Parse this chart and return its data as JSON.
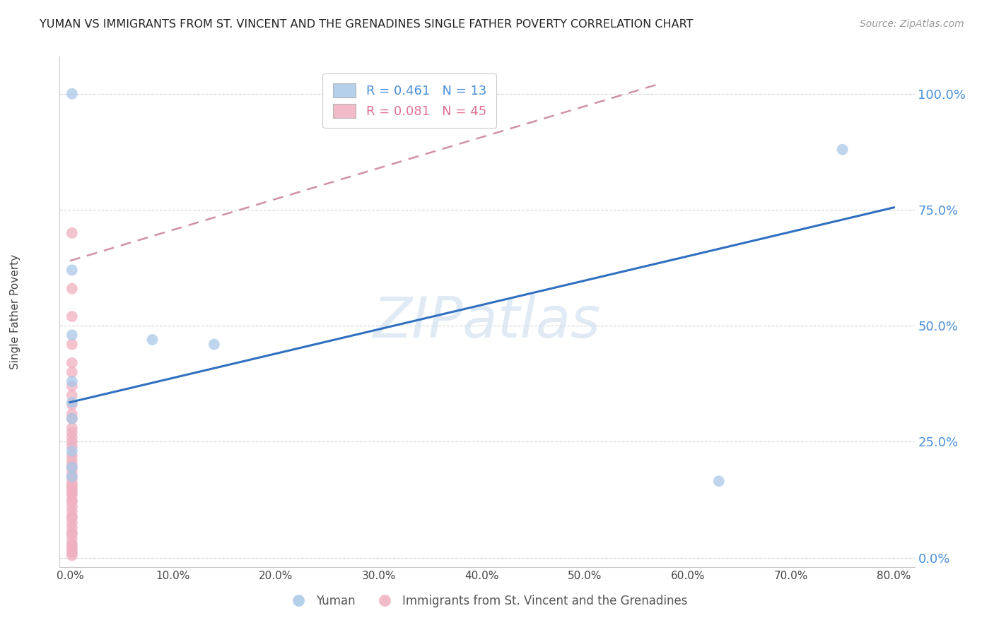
{
  "title": "YUMAN VS IMMIGRANTS FROM ST. VINCENT AND THE GRENADINES SINGLE FATHER POVERTY CORRELATION CHART",
  "source": "Source: ZipAtlas.com",
  "ylabel_label": "Single Father Poverty",
  "legend_blue_r": "R = 0.461",
  "legend_blue_n": "N = 13",
  "legend_pink_r": "R = 0.081",
  "legend_pink_n": "N = 45",
  "legend_blue_label": "Yuman",
  "legend_pink_label": "Immigrants from St. Vincent and the Grenadines",
  "watermark": "ZIPatlas",
  "blue_color": "#a8c8e8",
  "pink_color": "#f0b0c0",
  "trendline_blue_color": "#3070c0",
  "trendline_pink_color": "#d090a8",
  "yuman_x": [
    0.002,
    0.002,
    0.002,
    0.002,
    0.002,
    0.002,
    0.002,
    0.002,
    0.002,
    0.08,
    0.14,
    0.63,
    0.75
  ],
  "yuman_y": [
    1.0,
    0.62,
    0.48,
    0.38,
    0.335,
    0.3,
    0.23,
    0.195,
    0.175,
    0.47,
    0.46,
    0.165,
    0.88
  ],
  "immigrants_x": [
    0.002,
    0.002,
    0.002,
    0.002,
    0.002,
    0.002,
    0.002,
    0.002,
    0.002,
    0.002,
    0.002,
    0.002,
    0.002,
    0.002,
    0.002,
    0.002,
    0.002,
    0.002,
    0.002,
    0.002,
    0.002,
    0.002,
    0.002,
    0.002,
    0.002,
    0.002,
    0.002,
    0.002,
    0.002,
    0.002,
    0.002,
    0.002,
    0.002,
    0.002,
    0.002,
    0.002,
    0.002,
    0.002,
    0.002,
    0.002,
    0.002,
    0.002,
    0.002,
    0.002,
    0.002
  ],
  "immigrants_y": [
    0.7,
    0.58,
    0.52,
    0.46,
    0.42,
    0.4,
    0.37,
    0.35,
    0.33,
    0.31,
    0.3,
    0.28,
    0.27,
    0.26,
    0.25,
    0.24,
    0.22,
    0.21,
    0.2,
    0.19,
    0.18,
    0.17,
    0.16,
    0.155,
    0.15,
    0.145,
    0.14,
    0.135,
    0.125,
    0.12,
    0.11,
    0.1,
    0.09,
    0.085,
    0.075,
    0.065,
    0.055,
    0.05,
    0.04,
    0.03,
    0.025,
    0.02,
    0.015,
    0.01,
    0.005
  ],
  "xlim": [
    -0.01,
    0.82
  ],
  "ylim": [
    -0.02,
    1.08
  ],
  "blue_trendline_x0": 0.0,
  "blue_trendline_y0": 0.335,
  "blue_trendline_x1": 0.8,
  "blue_trendline_y1": 0.755,
  "pink_trendline_x0": 0.0,
  "pink_trendline_x1": 0.57,
  "pink_trendline_y0": 0.64,
  "pink_trendline_y1": 1.02
}
